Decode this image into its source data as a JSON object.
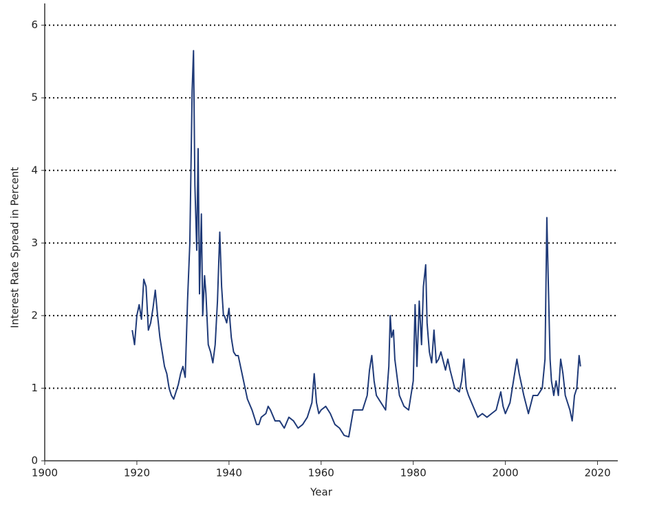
{
  "chart_data": {
    "type": "line",
    "x_label": "Year",
    "y_label": "Interest Rate Spread in Percent",
    "x": [
      1919.0,
      1919.5,
      1920.0,
      1920.5,
      1921.0,
      1921.5,
      1922.0,
      1922.5,
      1923.0,
      1923.5,
      1924.0,
      1924.5,
      1925.0,
      1925.5,
      1926.0,
      1926.5,
      1927.0,
      1927.5,
      1928.0,
      1928.5,
      1929.0,
      1929.5,
      1930.0,
      1930.5,
      1931.0,
      1931.5,
      1932.0,
      1932.3,
      1932.6,
      1933.0,
      1933.3,
      1933.6,
      1934.0,
      1934.3,
      1934.7,
      1935.0,
      1935.5,
      1936.0,
      1936.5,
      1937.0,
      1937.5,
      1938.0,
      1938.4,
      1938.8,
      1939.0,
      1939.5,
      1940.0,
      1940.5,
      1941.0,
      1941.5,
      1942.0,
      1942.5,
      1943.0,
      1943.5,
      1944.0,
      1945.0,
      1946.0,
      1946.5,
      1947.0,
      1948.0,
      1948.5,
      1949.0,
      1950.0,
      1951.0,
      1952.0,
      1953.0,
      1954.0,
      1955.0,
      1956.0,
      1957.0,
      1958.0,
      1958.5,
      1959.0,
      1959.5,
      1960.0,
      1961.0,
      1962.0,
      1963.0,
      1964.0,
      1965.0,
      1966.0,
      1967.0,
      1968.0,
      1969.0,
      1970.0,
      1970.5,
      1971.0,
      1971.5,
      1972.0,
      1973.0,
      1974.0,
      1974.7,
      1975.0,
      1975.3,
      1975.7,
      1976.0,
      1977.0,
      1978.0,
      1979.0,
      1980.0,
      1980.4,
      1980.8,
      1981.3,
      1981.8,
      1982.2,
      1982.7,
      1983.0,
      1983.5,
      1984.0,
      1984.5,
      1985.0,
      1985.5,
      1986.0,
      1987.0,
      1987.5,
      1988.0,
      1989.0,
      1990.0,
      1990.5,
      1991.0,
      1991.5,
      1992.0,
      1993.0,
      1994.0,
      1995.0,
      1996.0,
      1997.0,
      1998.0,
      1999.0,
      1999.5,
      2000.0,
      2001.0,
      2002.0,
      2002.5,
      2003.0,
      2004.0,
      2005.0,
      2006.0,
      2007.0,
      2008.0,
      2008.6,
      2009.0,
      2009.3,
      2009.7,
      2010.0,
      2010.5,
      2011.0,
      2011.5,
      2012.0,
      2012.5,
      2013.0,
      2014.0,
      2014.5,
      2015.0,
      2015.5,
      2016.0,
      2016.3
    ],
    "series": [
      {
        "color": "#1f3a78",
        "values": [
          1.8,
          1.6,
          2.0,
          2.15,
          1.95,
          2.5,
          2.4,
          1.8,
          1.9,
          2.1,
          2.35,
          2.0,
          1.7,
          1.5,
          1.3,
          1.2,
          1.0,
          0.9,
          0.85,
          0.95,
          1.05,
          1.2,
          1.3,
          1.15,
          2.2,
          3.0,
          5.1,
          5.65,
          3.8,
          2.9,
          4.3,
          2.3,
          3.4,
          2.0,
          2.55,
          2.3,
          1.6,
          1.5,
          1.35,
          1.6,
          2.2,
          3.15,
          2.4,
          2.0,
          2.0,
          1.9,
          2.1,
          1.7,
          1.5,
          1.45,
          1.45,
          1.3,
          1.15,
          1.0,
          0.85,
          0.7,
          0.5,
          0.5,
          0.6,
          0.65,
          0.75,
          0.7,
          0.55,
          0.55,
          0.45,
          0.6,
          0.55,
          0.45,
          0.5,
          0.6,
          0.8,
          1.2,
          0.8,
          0.65,
          0.7,
          0.75,
          0.65,
          0.5,
          0.45,
          0.35,
          0.33,
          0.7,
          0.7,
          0.7,
          0.9,
          1.25,
          1.45,
          1.1,
          0.9,
          0.8,
          0.7,
          1.3,
          2.0,
          1.7,
          1.8,
          1.4,
          0.9,
          0.75,
          0.7,
          1.1,
          2.15,
          1.3,
          2.2,
          1.6,
          2.4,
          2.7,
          1.9,
          1.5,
          1.35,
          1.8,
          1.35,
          1.4,
          1.5,
          1.25,
          1.4,
          1.25,
          1.0,
          0.95,
          1.1,
          1.4,
          1.0,
          0.9,
          0.75,
          0.6,
          0.65,
          0.6,
          0.65,
          0.7,
          0.95,
          0.75,
          0.65,
          0.8,
          1.2,
          1.4,
          1.2,
          0.9,
          0.65,
          0.9,
          0.9,
          1.0,
          1.4,
          3.35,
          2.5,
          1.4,
          1.1,
          0.9,
          1.1,
          0.9,
          1.4,
          1.2,
          0.9,
          0.7,
          0.55,
          0.9,
          1.0,
          1.45,
          1.3
        ]
      }
    ],
    "xlim": [
      1900,
      2024.4
    ],
    "xticks": [
      1900,
      1920,
      1940,
      1960,
      1980,
      2000,
      2020
    ],
    "ylim": [
      0,
      6.3
    ],
    "yticks": [
      0,
      1,
      2,
      3,
      4,
      5,
      6
    ],
    "grid": true
  }
}
